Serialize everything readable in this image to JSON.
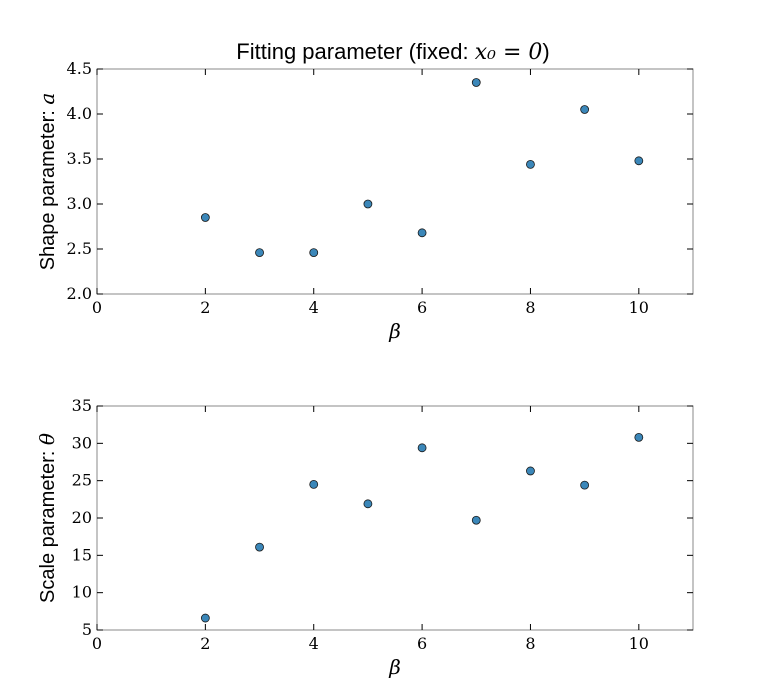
{
  "colors": {
    "marker_fill": "#3b87b9",
    "marker_edge": "#1a1a1a",
    "axes": "#888888"
  },
  "chart_data": [
    {
      "type": "scatter",
      "title": {
        "prefix": "Fitting parameter (fixed: ",
        "math": "x₀ = 0",
        "suffix": ")"
      },
      "xlabel": "β",
      "ylabel": {
        "text": "Shape parameter: ",
        "symbol": "a"
      },
      "xlim": [
        0,
        11
      ],
      "ylim": [
        2.0,
        4.5
      ],
      "xticks": [
        0,
        2,
        4,
        6,
        8,
        10
      ],
      "yticks": [
        2.0,
        2.5,
        3.0,
        3.5,
        4.0,
        4.5
      ],
      "ytick_labels": [
        "2.0",
        "2.5",
        "3.0",
        "3.5",
        "4.0",
        "4.5"
      ],
      "grid": false,
      "x": [
        2,
        3,
        4,
        5,
        6,
        7,
        8,
        9,
        10
      ],
      "y": [
        2.85,
        2.46,
        2.46,
        3.0,
        2.68,
        4.35,
        3.44,
        4.05,
        3.48
      ]
    },
    {
      "type": "scatter",
      "xlabel": "β",
      "ylabel": {
        "text": "Scale parameter: ",
        "symbol": "θ"
      },
      "xlim": [
        0,
        11
      ],
      "ylim": [
        5,
        35
      ],
      "xticks": [
        0,
        2,
        4,
        6,
        8,
        10
      ],
      "yticks": [
        5,
        10,
        15,
        20,
        25,
        30,
        35
      ],
      "ytick_labels": [
        "5",
        "10",
        "15",
        "20",
        "25",
        "30",
        "35"
      ],
      "grid": false,
      "x": [
        2,
        3,
        4,
        5,
        6,
        7,
        8,
        9,
        10
      ],
      "y": [
        6.6,
        16.1,
        24.5,
        21.9,
        29.4,
        19.7,
        26.3,
        24.4,
        30.8
      ]
    }
  ]
}
